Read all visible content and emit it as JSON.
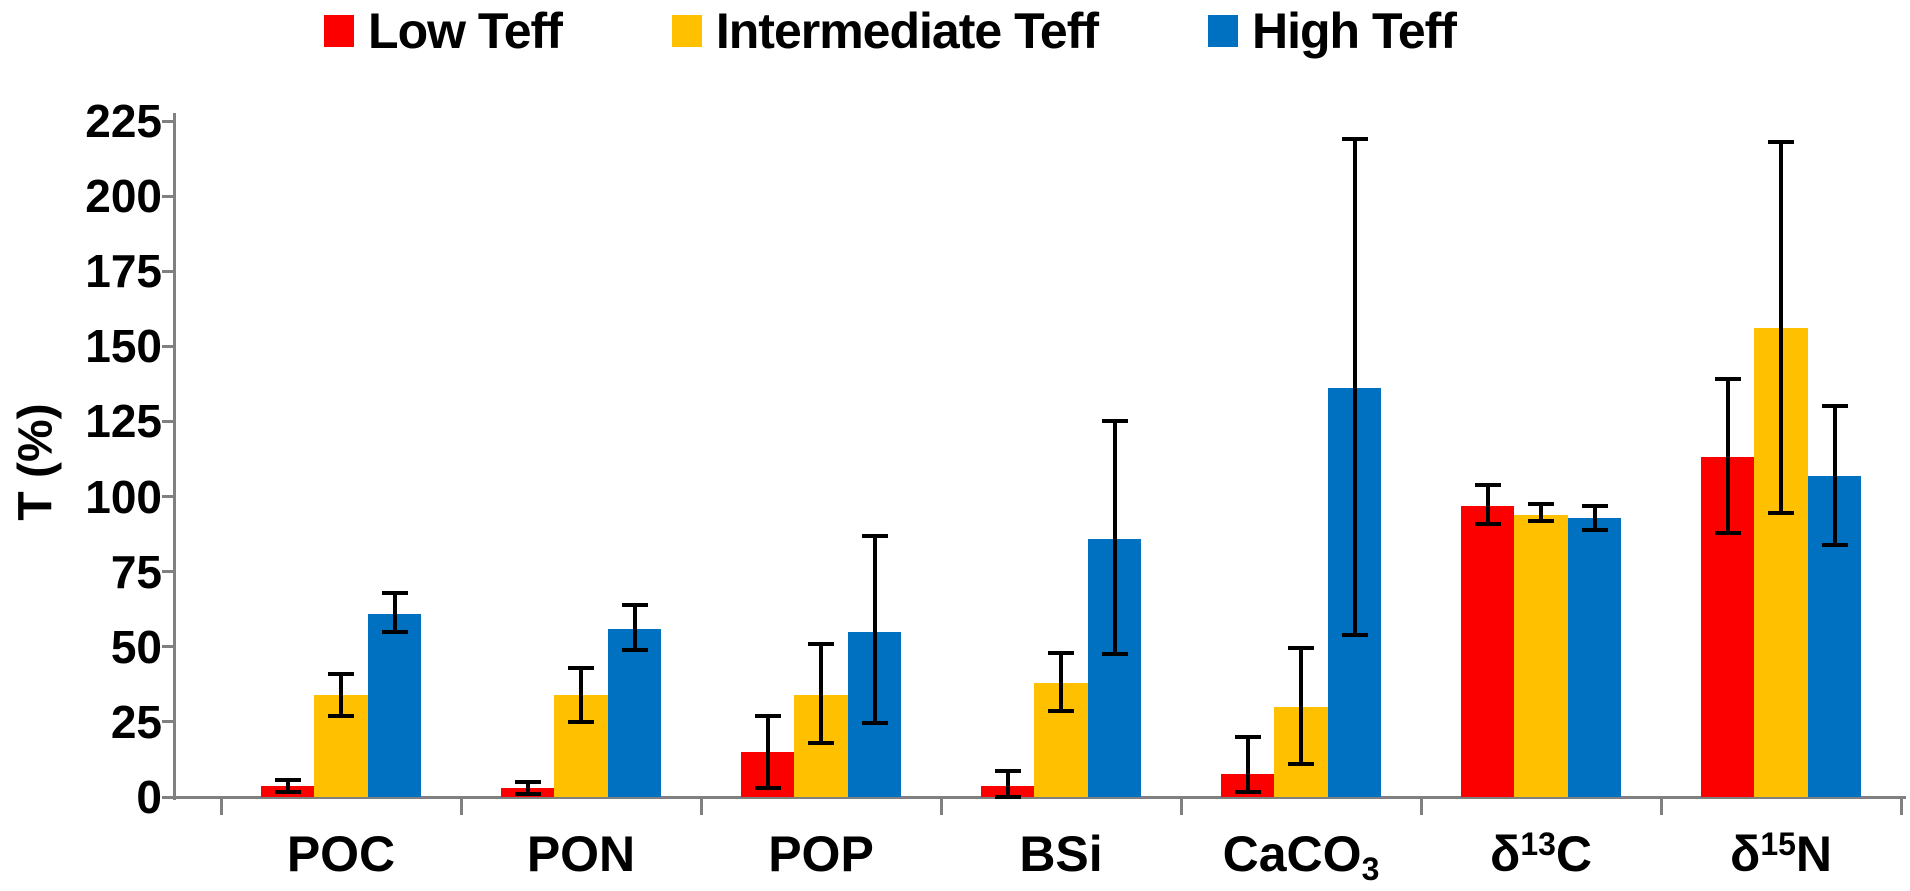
{
  "chart_data": {
    "type": "bar",
    "title": "",
    "ylabel": "T (%)",
    "xlabel": "",
    "ylim": [
      0,
      225
    ],
    "yticks": [
      0,
      25,
      50,
      75,
      100,
      125,
      150,
      175,
      200,
      225
    ],
    "grid": false,
    "legend_position": "top-center",
    "axis_color": "#808080",
    "error_bar_color": "#000000",
    "categories": [
      {
        "label": "POC",
        "parts": [
          {
            "t": "POC"
          }
        ]
      },
      {
        "label": "PON",
        "parts": [
          {
            "t": "PON"
          }
        ]
      },
      {
        "label": "POP",
        "parts": [
          {
            "t": "POP"
          }
        ]
      },
      {
        "label": "BSi",
        "parts": [
          {
            "t": "BSi"
          }
        ]
      },
      {
        "label": "CaCO3",
        "parts": [
          {
            "t": "CaCO"
          },
          {
            "t": "3",
            "style": "sub"
          }
        ]
      },
      {
        "label": "δ13C",
        "parts": [
          {
            "t": "δ"
          },
          {
            "t": "13",
            "style": "sup"
          },
          {
            "t": "C"
          }
        ]
      },
      {
        "label": "δ15N",
        "parts": [
          {
            "t": "δ"
          },
          {
            "t": "15",
            "style": "sup"
          },
          {
            "t": "N"
          }
        ]
      }
    ],
    "series": [
      {
        "name": "Low Teff",
        "color": "#FC0000",
        "values": [
          3.5,
          3,
          15,
          3.5,
          7.5,
          97,
          113
        ],
        "error_min": [
          1.5,
          1,
          3,
          0,
          1.5,
          91,
          88
        ],
        "error_max": [
          5.5,
          5,
          27,
          8.5,
          20,
          104,
          139
        ]
      },
      {
        "name": "Intermediate Teff",
        "color": "#FFC000",
        "values": [
          34,
          34,
          34,
          38,
          30,
          94,
          156
        ],
        "error_min": [
          27,
          25,
          18,
          28.5,
          11,
          92,
          94.5
        ],
        "error_max": [
          41,
          43,
          51,
          48,
          49.5,
          97.5,
          218
        ]
      },
      {
        "name": "High Teff",
        "color": "#0070C0",
        "values": [
          61,
          56,
          55,
          86,
          136,
          93,
          107
        ],
        "error_min": [
          55,
          49,
          24.5,
          47.5,
          54,
          89,
          84
        ],
        "error_max": [
          68,
          64,
          87,
          125,
          219,
          97,
          130
        ]
      }
    ]
  }
}
